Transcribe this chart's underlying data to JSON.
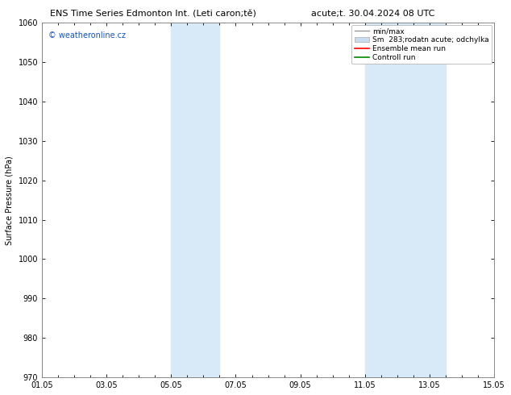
{
  "title_left": "ENS Time Series Edmonton Int. (Leti caron;tě)",
  "title_right": "acute;t. 30.04.2024 08 UTC",
  "ylabel": "Surface Pressure (hPa)",
  "ylim": [
    970,
    1060
  ],
  "yticks": [
    970,
    980,
    990,
    1000,
    1010,
    1020,
    1030,
    1040,
    1050,
    1060
  ],
  "xlim_start": 0,
  "xlim_end": 14,
  "xtick_labels": [
    "01.05",
    "03.05",
    "05.05",
    "07.05",
    "09.05",
    "11.05",
    "13.05",
    "15.05"
  ],
  "xtick_positions": [
    0,
    2,
    4,
    6,
    8,
    10,
    12,
    14
  ],
  "shade_bands": [
    {
      "xmin": 4.0,
      "xmax": 5.5
    },
    {
      "xmin": 10.0,
      "xmax": 12.5
    }
  ],
  "shade_color": "#d8eaf8",
  "watermark": "© weatheronline.cz",
  "watermark_color": "#1155cc",
  "legend_entries": [
    {
      "label": "min/max",
      "color": "#999999",
      "lw": 1.0
    },
    {
      "label": "Sm  283;rodatn acute; odchylka",
      "color": "#c8ddf0",
      "lw": 6
    },
    {
      "label": "Ensemble mean run",
      "color": "#ff0000",
      "lw": 1.2
    },
    {
      "label": "Controll run",
      "color": "#008800",
      "lw": 1.2
    }
  ],
  "bg_color": "#ffffff",
  "plot_bg_color": "#ffffff",
  "spine_color": "#888888",
  "title_fontsize": 8,
  "tick_fontsize": 7,
  "ylabel_fontsize": 7,
  "watermark_fontsize": 7,
  "legend_fontsize": 6.5
}
